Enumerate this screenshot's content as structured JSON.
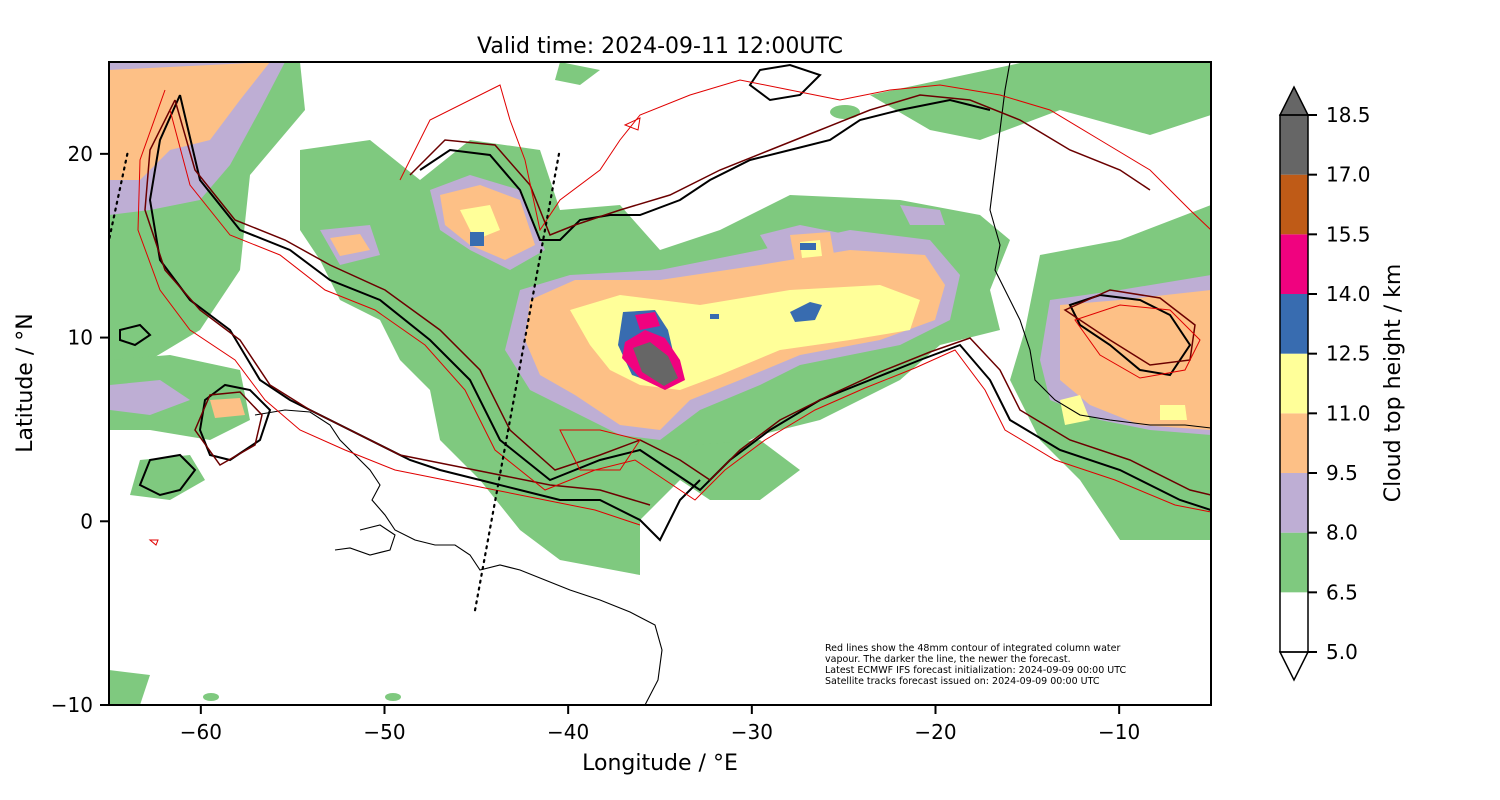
{
  "map": {
    "title": "Valid time: 2024-09-11 12:00UTC",
    "xlabel": "Longitude / °E",
    "ylabel": "Latitude / °N",
    "xticks": [
      -60,
      -50,
      -40,
      -30,
      -20,
      -10
    ],
    "yticks": [
      -10,
      0,
      10,
      20
    ],
    "xtick_labels": [
      "−60",
      "−50",
      "−40",
      "−30",
      "−20",
      "−10"
    ],
    "ytick_labels": [
      "−10",
      "0",
      "10",
      "20"
    ],
    "extent": {
      "lon": [
        -65,
        -5
      ],
      "lat": [
        -10,
        25
      ]
    },
    "annotation_lines": [
      "Red lines show the 48mm contour of integrated column water",
      "vapour. The darker the line, the newer the forecast.",
      "Latest ECMWF IFS forecast initialization: 2024-09-09 00:00 UTC",
      "Satellite tracks forecast issued on: 2024-09-09 00:00 UTC"
    ]
  },
  "colorbar": {
    "label": "Cloud top height / km",
    "levels": [
      "5.0",
      "6.5",
      "8.0",
      "9.5",
      "11.0",
      "12.5",
      "14.0",
      "15.5",
      "17.0",
      "18.5"
    ],
    "colors": [
      "#ffffff",
      "#7fc97f",
      "#beaed4",
      "#fdc086",
      "#ffff99",
      "#386cb0",
      "#f0027f",
      "#bf5b17",
      "#666666"
    ]
  },
  "satellite_tracks": [
    {
      "lon": [
        -64,
        -65.6
      ],
      "lat": [
        20,
        12.5
      ]
    },
    {
      "lon": [
        -40.5,
        -45.1
      ],
      "lat": [
        20,
        -5
      ]
    }
  ]
}
